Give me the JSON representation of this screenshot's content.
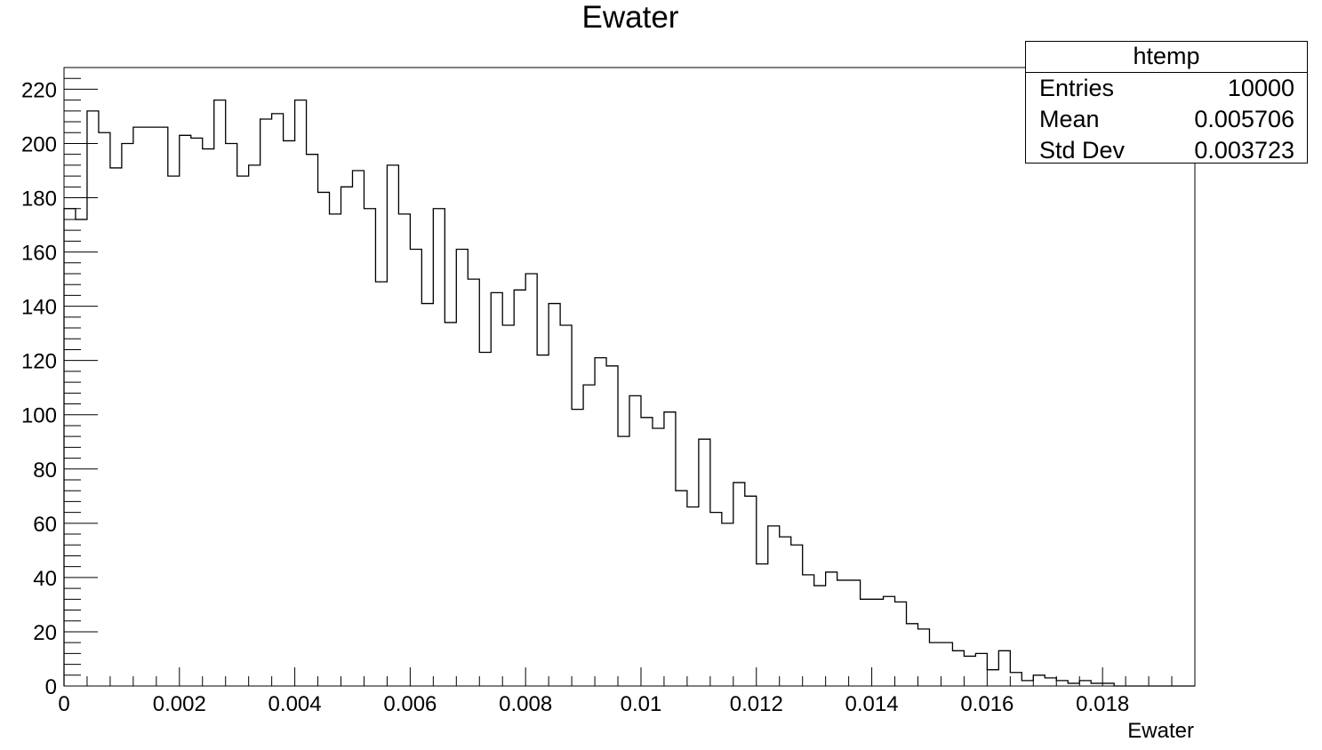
{
  "chart_data": {
    "type": "histogram",
    "title": "Ewater",
    "xlabel": "Ewater",
    "ylabel": "",
    "xlim": [
      0,
      0.0196
    ],
    "ylim": [
      0,
      228
    ],
    "bin_width": 0.0002,
    "x_start": 0,
    "x_tick_labels": [
      "0",
      "0.002",
      "0.004",
      "0.006",
      "0.008",
      "0.01",
      "0.012",
      "0.014",
      "0.016",
      "0.018"
    ],
    "y_tick_labels": [
      "0",
      "20",
      "40",
      "60",
      "80",
      "100",
      "120",
      "140",
      "160",
      "180",
      "200",
      "220"
    ],
    "values": [
      176,
      172,
      212,
      204,
      191,
      200,
      206,
      206,
      206,
      188,
      203,
      202,
      198,
      216,
      200,
      188,
      192,
      209,
      211,
      201,
      216,
      196,
      182,
      174,
      184,
      190,
      176,
      149,
      192,
      174,
      161,
      141,
      176,
      134,
      161,
      150,
      123,
      145,
      133,
      146,
      152,
      122,
      141,
      133,
      102,
      111,
      121,
      118,
      92,
      107,
      99,
      95,
      101,
      72,
      66,
      91,
      64,
      60,
      75,
      70,
      45,
      59,
      55,
      52,
      41,
      37,
      42,
      39,
      39,
      32,
      32,
      33,
      31,
      23,
      21,
      16,
      16,
      13,
      11,
      12,
      6,
      13,
      5,
      2,
      4,
      3,
      2,
      1,
      2,
      1,
      1,
      0,
      0,
      0,
      0,
      0,
      0,
      0
    ],
    "stats": {
      "name": "htemp",
      "rows": [
        {
          "label": "Entries",
          "value": "10000"
        },
        {
          "label": "Mean",
          "value": "0.005706"
        },
        {
          "label": "Std Dev",
          "value": "0.003723"
        }
      ]
    },
    "colors": {
      "line": "#000000",
      "frame": "#000000",
      "background": "#ffffff"
    }
  }
}
